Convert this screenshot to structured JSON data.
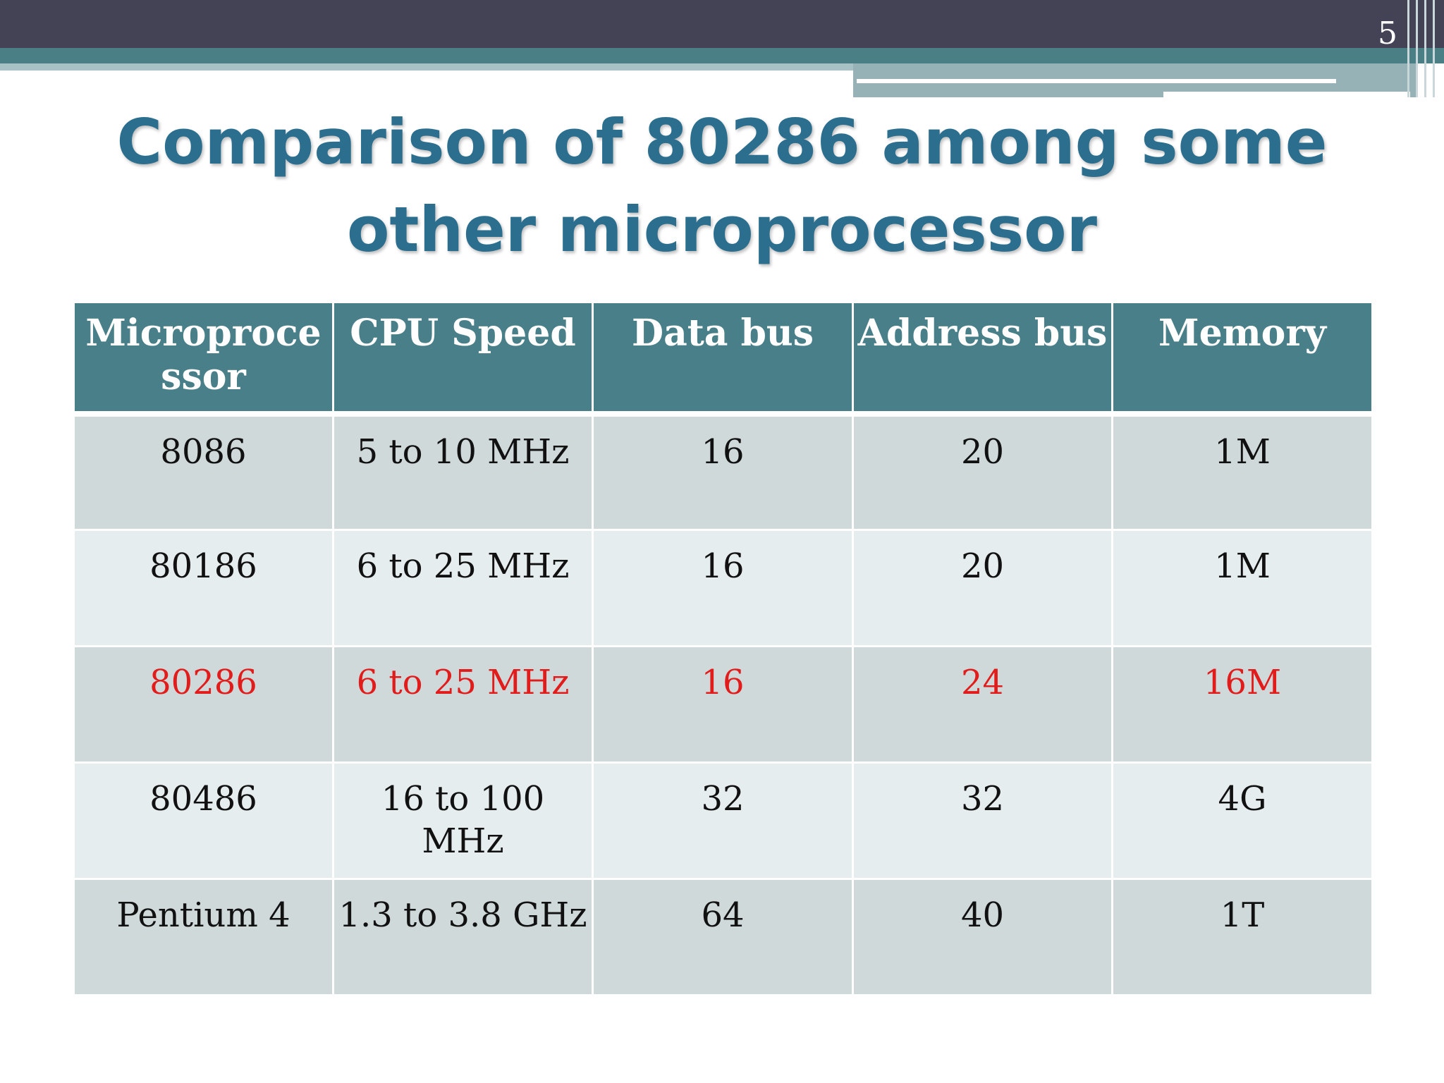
{
  "slide": {
    "number": "5",
    "title_line1": "Comparison of 80286 among some",
    "title_line2": "other microprocessor"
  },
  "colors": {
    "header_bg": "#487f88",
    "title": "#2b6e8e",
    "highlight": "#e21b1b",
    "row_odd": "#cfd9da",
    "row_even": "#e6edef"
  },
  "table": {
    "headers": [
      "Microproce ssor",
      "CPU Speed",
      "Data bus",
      "Address bus",
      "Memory"
    ],
    "rows": [
      [
        "8086",
        "5 to 10 MHz",
        "16",
        "20",
        "1M"
      ],
      [
        "80186",
        "6 to 25 MHz",
        "16",
        "20",
        "1M"
      ],
      [
        "80286",
        "6 to 25 MHz",
        "16",
        "24",
        "16M"
      ],
      [
        "80486",
        "16 to 100 MHz",
        "32",
        "32",
        "4G"
      ],
      [
        "Pentium 4",
        "1.3 to 3.8 GHz",
        "64",
        "40",
        "1T"
      ]
    ],
    "highlighted_row": "80286"
  }
}
